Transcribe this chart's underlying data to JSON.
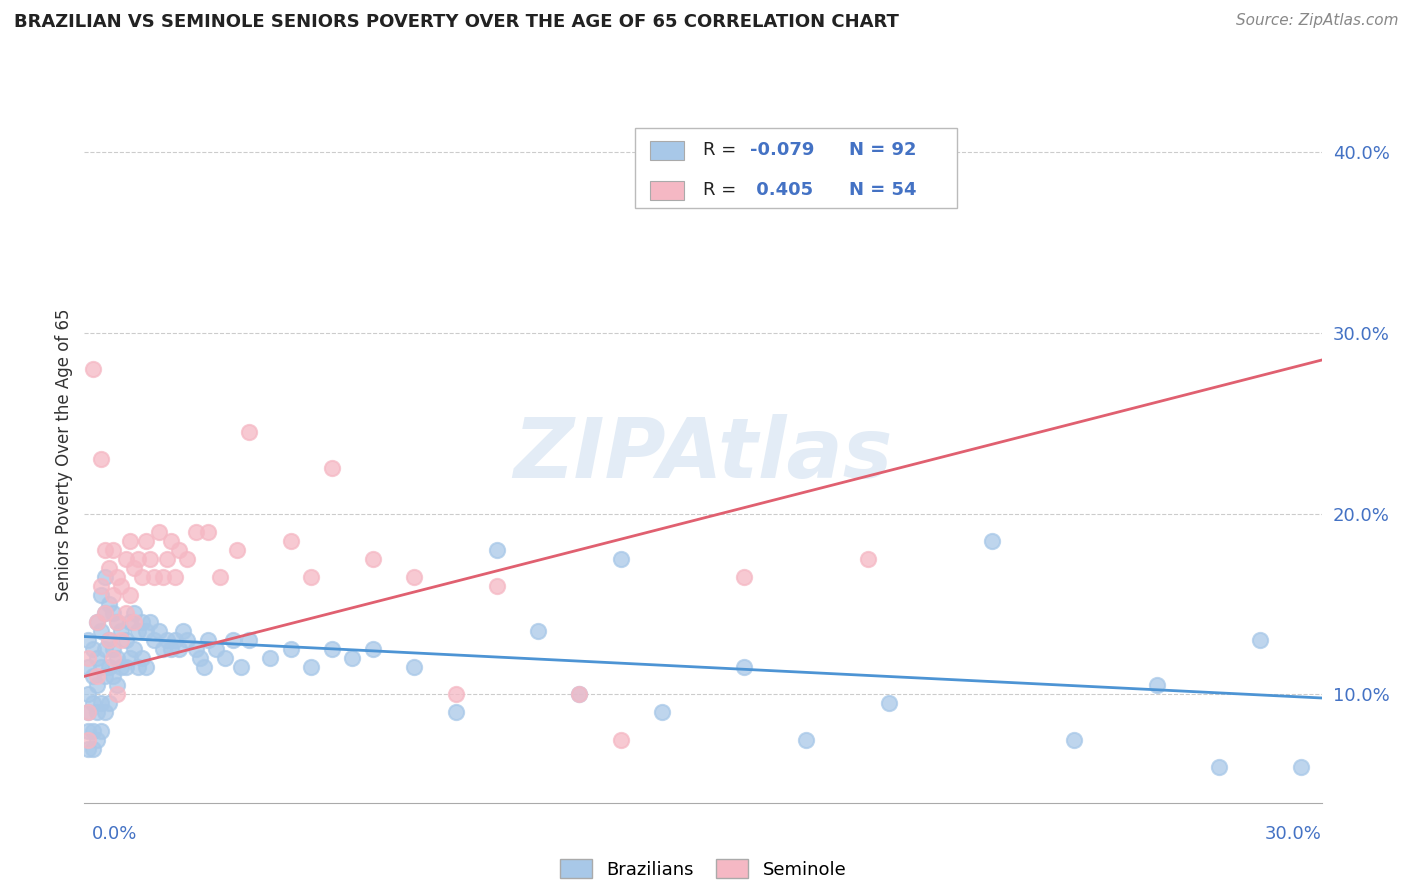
{
  "title": "BRAZILIAN VS SEMINOLE SENIORS POVERTY OVER THE AGE OF 65 CORRELATION CHART",
  "source": "Source: ZipAtlas.com",
  "ylabel": "Seniors Poverty Over the Age of 65",
  "xlim": [
    0.0,
    0.3
  ],
  "ylim": [
    0.04,
    0.425
  ],
  "yticks": [
    0.1,
    0.2,
    0.3,
    0.4
  ],
  "ytick_labels": [
    "10.0%",
    "20.0%",
    "30.0%",
    "40.0%"
  ],
  "grid_color": "#cccccc",
  "blue_color": "#a8c8e8",
  "pink_color": "#f5b8c4",
  "blue_line_color": "#4d94d4",
  "pink_line_color": "#e06070",
  "blue_scatter": [
    [
      0.001,
      0.13
    ],
    [
      0.001,
      0.115
    ],
    [
      0.001,
      0.1
    ],
    [
      0.001,
      0.09
    ],
    [
      0.001,
      0.08
    ],
    [
      0.001,
      0.07
    ],
    [
      0.002,
      0.125
    ],
    [
      0.002,
      0.11
    ],
    [
      0.002,
      0.095
    ],
    [
      0.002,
      0.08
    ],
    [
      0.002,
      0.07
    ],
    [
      0.003,
      0.14
    ],
    [
      0.003,
      0.12
    ],
    [
      0.003,
      0.105
    ],
    [
      0.003,
      0.09
    ],
    [
      0.003,
      0.075
    ],
    [
      0.004,
      0.155
    ],
    [
      0.004,
      0.135
    ],
    [
      0.004,
      0.115
    ],
    [
      0.004,
      0.095
    ],
    [
      0.004,
      0.08
    ],
    [
      0.005,
      0.165
    ],
    [
      0.005,
      0.145
    ],
    [
      0.005,
      0.125
    ],
    [
      0.005,
      0.11
    ],
    [
      0.005,
      0.09
    ],
    [
      0.006,
      0.15
    ],
    [
      0.006,
      0.13
    ],
    [
      0.006,
      0.115
    ],
    [
      0.006,
      0.095
    ],
    [
      0.007,
      0.145
    ],
    [
      0.007,
      0.125
    ],
    [
      0.007,
      0.11
    ],
    [
      0.008,
      0.14
    ],
    [
      0.008,
      0.12
    ],
    [
      0.008,
      0.105
    ],
    [
      0.009,
      0.135
    ],
    [
      0.009,
      0.115
    ],
    [
      0.01,
      0.13
    ],
    [
      0.01,
      0.115
    ],
    [
      0.011,
      0.14
    ],
    [
      0.011,
      0.12
    ],
    [
      0.012,
      0.145
    ],
    [
      0.012,
      0.125
    ],
    [
      0.013,
      0.135
    ],
    [
      0.013,
      0.115
    ],
    [
      0.014,
      0.14
    ],
    [
      0.014,
      0.12
    ],
    [
      0.015,
      0.135
    ],
    [
      0.015,
      0.115
    ],
    [
      0.016,
      0.14
    ],
    [
      0.017,
      0.13
    ],
    [
      0.018,
      0.135
    ],
    [
      0.019,
      0.125
    ],
    [
      0.02,
      0.13
    ],
    [
      0.021,
      0.125
    ],
    [
      0.022,
      0.13
    ],
    [
      0.023,
      0.125
    ],
    [
      0.024,
      0.135
    ],
    [
      0.025,
      0.13
    ],
    [
      0.027,
      0.125
    ],
    [
      0.028,
      0.12
    ],
    [
      0.029,
      0.115
    ],
    [
      0.03,
      0.13
    ],
    [
      0.032,
      0.125
    ],
    [
      0.034,
      0.12
    ],
    [
      0.036,
      0.13
    ],
    [
      0.038,
      0.115
    ],
    [
      0.04,
      0.13
    ],
    [
      0.045,
      0.12
    ],
    [
      0.05,
      0.125
    ],
    [
      0.055,
      0.115
    ],
    [
      0.06,
      0.125
    ],
    [
      0.065,
      0.12
    ],
    [
      0.07,
      0.125
    ],
    [
      0.08,
      0.115
    ],
    [
      0.09,
      0.09
    ],
    [
      0.1,
      0.18
    ],
    [
      0.11,
      0.135
    ],
    [
      0.12,
      0.1
    ],
    [
      0.13,
      0.175
    ],
    [
      0.14,
      0.09
    ],
    [
      0.16,
      0.115
    ],
    [
      0.175,
      0.075
    ],
    [
      0.195,
      0.095
    ],
    [
      0.22,
      0.185
    ],
    [
      0.24,
      0.075
    ],
    [
      0.26,
      0.105
    ],
    [
      0.275,
      0.06
    ],
    [
      0.285,
      0.13
    ],
    [
      0.295,
      0.06
    ]
  ],
  "pink_scatter": [
    [
      0.001,
      0.12
    ],
    [
      0.001,
      0.09
    ],
    [
      0.001,
      0.075
    ],
    [
      0.002,
      0.28
    ],
    [
      0.003,
      0.14
    ],
    [
      0.003,
      0.11
    ],
    [
      0.004,
      0.23
    ],
    [
      0.004,
      0.16
    ],
    [
      0.005,
      0.18
    ],
    [
      0.005,
      0.145
    ],
    [
      0.006,
      0.17
    ],
    [
      0.006,
      0.13
    ],
    [
      0.007,
      0.18
    ],
    [
      0.007,
      0.155
    ],
    [
      0.007,
      0.12
    ],
    [
      0.008,
      0.165
    ],
    [
      0.008,
      0.14
    ],
    [
      0.008,
      0.1
    ],
    [
      0.009,
      0.16
    ],
    [
      0.009,
      0.13
    ],
    [
      0.01,
      0.175
    ],
    [
      0.01,
      0.145
    ],
    [
      0.011,
      0.185
    ],
    [
      0.011,
      0.155
    ],
    [
      0.012,
      0.17
    ],
    [
      0.012,
      0.14
    ],
    [
      0.013,
      0.175
    ],
    [
      0.014,
      0.165
    ],
    [
      0.015,
      0.185
    ],
    [
      0.016,
      0.175
    ],
    [
      0.017,
      0.165
    ],
    [
      0.018,
      0.19
    ],
    [
      0.019,
      0.165
    ],
    [
      0.02,
      0.175
    ],
    [
      0.021,
      0.185
    ],
    [
      0.022,
      0.165
    ],
    [
      0.023,
      0.18
    ],
    [
      0.025,
      0.175
    ],
    [
      0.027,
      0.19
    ],
    [
      0.03,
      0.19
    ],
    [
      0.033,
      0.165
    ],
    [
      0.037,
      0.18
    ],
    [
      0.04,
      0.245
    ],
    [
      0.05,
      0.185
    ],
    [
      0.055,
      0.165
    ],
    [
      0.06,
      0.225
    ],
    [
      0.07,
      0.175
    ],
    [
      0.08,
      0.165
    ],
    [
      0.09,
      0.1
    ],
    [
      0.1,
      0.16
    ],
    [
      0.12,
      0.1
    ],
    [
      0.13,
      0.075
    ],
    [
      0.16,
      0.165
    ],
    [
      0.19,
      0.175
    ]
  ],
  "blue_trend_x": [
    0.0,
    0.3
  ],
  "blue_trend_y": [
    0.132,
    0.098
  ],
  "pink_trend_x": [
    0.0,
    0.3
  ],
  "pink_trend_y": [
    0.11,
    0.285
  ]
}
